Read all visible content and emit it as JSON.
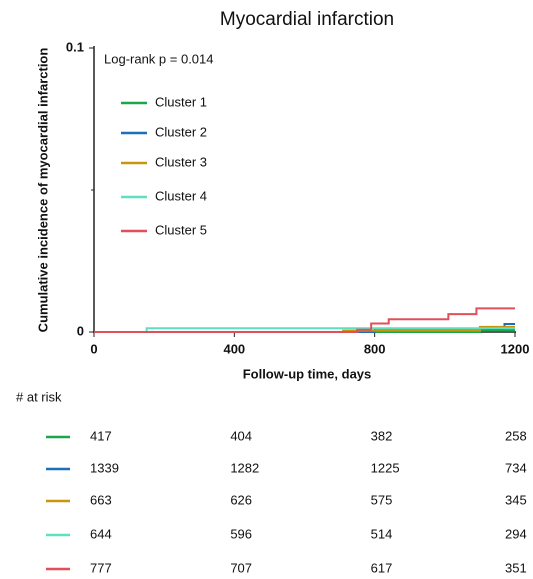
{
  "chart_data": {
    "type": "step",
    "title": "Myocardial infarction",
    "xlabel": "Follow-up time, days",
    "ylabel": "Cumulative incidence of myocardial infarction",
    "annotation": "Log-rank p = 0.014",
    "xlim": [
      0,
      1200
    ],
    "xticks": [
      0,
      400,
      800,
      1200
    ],
    "ylim": [
      0,
      0.1
    ],
    "yticks": [
      0,
      0.1
    ],
    "minor_yticks": [
      0.05
    ],
    "series": [
      {
        "name": "Cluster 1",
        "color": "#1aa64a",
        "x": [
          0,
          1100,
          1200
        ],
        "values": [
          0,
          0.0007,
          0.0007
        ]
      },
      {
        "name": "Cluster 2",
        "color": "#1f6fb8",
        "x": [
          0,
          800,
          1170,
          1200
        ],
        "values": [
          0,
          0.0012,
          0.0028,
          0.0028
        ]
      },
      {
        "name": "Cluster 3",
        "color": "#c8960c",
        "x": [
          0,
          710,
          1100,
          1200
        ],
        "values": [
          0,
          0.0005,
          0.0018,
          0.0018
        ]
      },
      {
        "name": "Cluster 4",
        "color": "#5ddfc0",
        "x": [
          0,
          150,
          1200
        ],
        "values": [
          0,
          0.0013,
          0.0013
        ]
      },
      {
        "name": "Cluster 5",
        "color": "#e0505a",
        "x": [
          0,
          750,
          790,
          840,
          1010,
          1090,
          1200
        ],
        "values": [
          0,
          0.0008,
          0.003,
          0.0045,
          0.0063,
          0.0083,
          0.0083
        ]
      }
    ],
    "at_risk": {
      "label": "# at risk",
      "rows": [
        [
          417,
          404,
          382,
          258
        ],
        [
          1339,
          1282,
          1225,
          734
        ],
        [
          663,
          626,
          575,
          345
        ],
        [
          644,
          596,
          514,
          294
        ],
        [
          777,
          707,
          617,
          351
        ]
      ]
    }
  }
}
